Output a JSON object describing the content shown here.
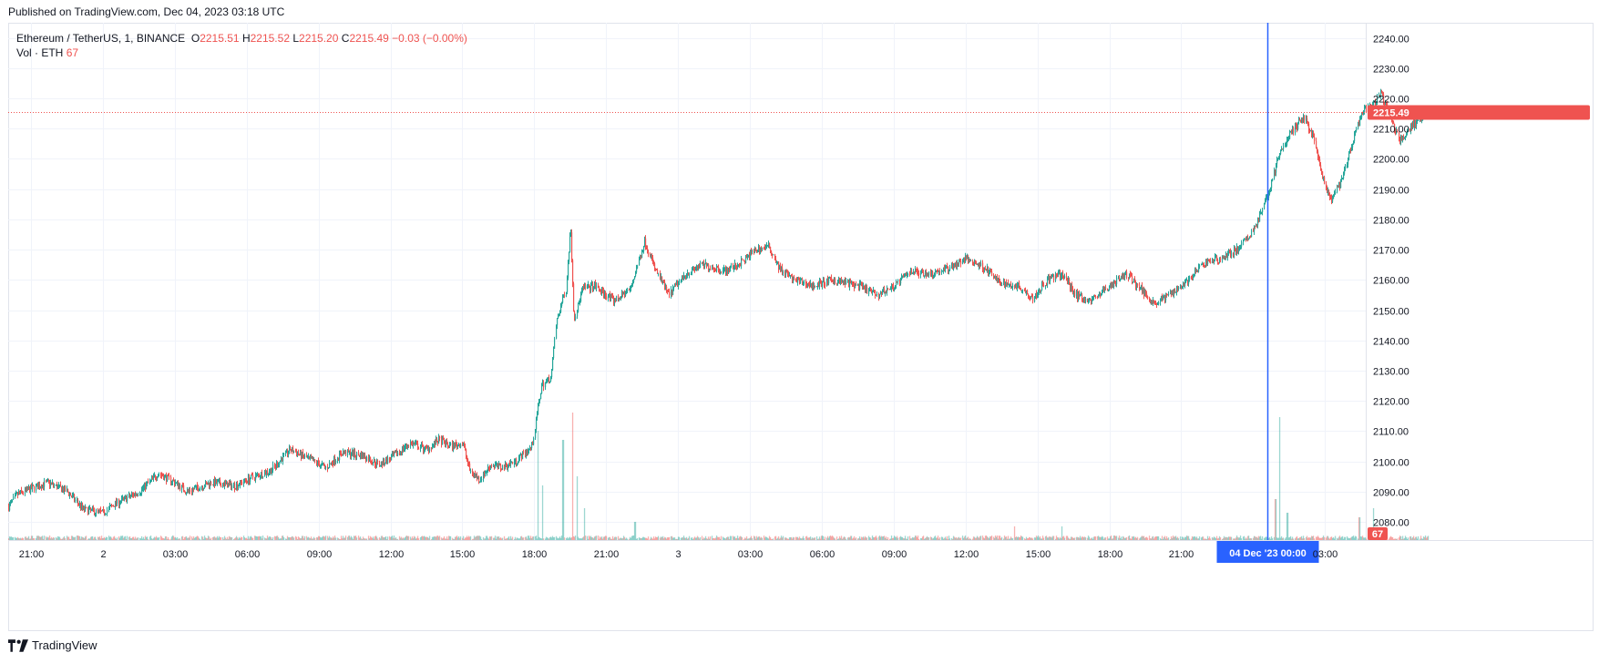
{
  "published": "Published on TradingView.com, Dec 04, 2023 03:18 UTC",
  "legend": {
    "symbol": "Ethereum / TetherUS, 1, BINANCE",
    "o_label": "O",
    "o_value": "2215.51",
    "h_label": "H",
    "h_value": "2215.52",
    "l_label": "L",
    "l_value": "2215.20",
    "c_label": "C",
    "c_value": "2215.49",
    "change": "−0.03 (−0.00%)",
    "vol_label": "Vol · ETH",
    "vol_value": "67"
  },
  "brand": "TradingView",
  "colors": {
    "up": "#26a69a",
    "down": "#ef5350",
    "crosshair": "#2962ff",
    "grid": "#f0f3fa",
    "text": "#131722"
  },
  "chart_data": {
    "type": "candlestick",
    "symbol": "Ethereum / TetherUS, 1, BINANCE",
    "interval": "1",
    "ylim": [
      2074,
      2245
    ],
    "y_ticks": [
      2080,
      2090,
      2100,
      2110,
      2120,
      2130,
      2140,
      2150,
      2160,
      2170,
      2180,
      2190,
      2200,
      2210,
      2220,
      2230,
      2240
    ],
    "y_tick_labels": [
      "2080.00",
      "2090.00",
      "2100.00",
      "2110.00",
      "2120.00",
      "2130.00",
      "2140.00",
      "2150.00",
      "2160.00",
      "2170.00",
      "2180.00",
      "2190.00",
      "2200.00",
      "2210.00",
      "2220.00",
      "2230.00",
      "2240.00"
    ],
    "x_ticks": [
      "21:00",
      "2",
      "03:00",
      "06:00",
      "09:00",
      "12:00",
      "15:00",
      "18:00",
      "21:00",
      "3",
      "03:00",
      "06:00",
      "09:00",
      "12:00",
      "15:00",
      "18:00",
      "21:00",
      "03:00"
    ],
    "x_tick_hours": [
      0,
      3,
      6,
      9,
      12,
      15,
      18,
      21,
      24,
      27,
      30,
      33,
      36,
      39,
      42,
      45,
      48,
      54
    ],
    "x_range_hours": [
      -0.95,
      55.7
    ],
    "last_price": 2215.49,
    "last_price_label": "2215.49",
    "volume_label": "67",
    "crosshair_time_hours": 51.6,
    "crosshair_label": "04 Dec '23   00:00",
    "price_path": [
      [
        -0.95,
        2085
      ],
      [
        -0.6,
        2089
      ],
      [
        0.0,
        2091
      ],
      [
        0.7,
        2093
      ],
      [
        1.5,
        2090
      ],
      [
        2.2,
        2084
      ],
      [
        3.0,
        2083
      ],
      [
        3.5,
        2086
      ],
      [
        4.5,
        2090
      ],
      [
        5.3,
        2096
      ],
      [
        6.0,
        2093
      ],
      [
        6.5,
        2090
      ],
      [
        7.5,
        2093
      ],
      [
        8.5,
        2092
      ],
      [
        9.3,
        2095
      ],
      [
        10.0,
        2097
      ],
      [
        10.8,
        2104
      ],
      [
        11.5,
        2101
      ],
      [
        12.3,
        2098
      ],
      [
        13.0,
        2103
      ],
      [
        13.8,
        2102
      ],
      [
        14.5,
        2099
      ],
      [
        15.0,
        2101
      ],
      [
        15.8,
        2106
      ],
      [
        16.5,
        2104
      ],
      [
        17.0,
        2107
      ],
      [
        17.5,
        2105
      ],
      [
        18.0,
        2106
      ],
      [
        18.3,
        2097
      ],
      [
        18.7,
        2094
      ],
      [
        19.2,
        2099
      ],
      [
        19.6,
        2098
      ],
      [
        20.2,
        2100
      ],
      [
        20.9,
        2105
      ],
      [
        21.1,
        2116
      ],
      [
        21.3,
        2125
      ],
      [
        21.7,
        2128
      ],
      [
        21.9,
        2146
      ],
      [
        22.3,
        2157
      ],
      [
        22.5,
        2178
      ],
      [
        22.65,
        2147
      ],
      [
        23.0,
        2157
      ],
      [
        23.5,
        2158
      ],
      [
        24.3,
        2153
      ],
      [
        25.0,
        2157
      ],
      [
        25.6,
        2173
      ],
      [
        26.0,
        2164
      ],
      [
        26.6,
        2155
      ],
      [
        27.3,
        2162
      ],
      [
        28.0,
        2165
      ],
      [
        29.0,
        2163
      ],
      [
        29.7,
        2166
      ],
      [
        30.2,
        2170
      ],
      [
        30.8,
        2171
      ],
      [
        31.2,
        2164
      ],
      [
        31.8,
        2160
      ],
      [
        32.6,
        2158
      ],
      [
        33.5,
        2160
      ],
      [
        34.5,
        2158
      ],
      [
        35.3,
        2155
      ],
      [
        36.0,
        2158
      ],
      [
        36.7,
        2163
      ],
      [
        37.5,
        2162
      ],
      [
        38.3,
        2164
      ],
      [
        39.0,
        2167
      ],
      [
        39.8,
        2164
      ],
      [
        40.4,
        2159
      ],
      [
        41.2,
        2158
      ],
      [
        41.8,
        2154
      ],
      [
        42.4,
        2160
      ],
      [
        43.0,
        2162
      ],
      [
        43.6,
        2155
      ],
      [
        44.2,
        2153
      ],
      [
        45.0,
        2158
      ],
      [
        45.7,
        2162
      ],
      [
        46.3,
        2157
      ],
      [
        46.9,
        2152
      ],
      [
        47.6,
        2156
      ],
      [
        48.3,
        2160
      ],
      [
        49.0,
        2166
      ],
      [
        49.6,
        2167
      ],
      [
        50.3,
        2170
      ],
      [
        50.8,
        2174
      ],
      [
        51.2,
        2180
      ],
      [
        51.6,
        2188
      ],
      [
        52.0,
        2200
      ],
      [
        52.5,
        2208
      ],
      [
        53.1,
        2214
      ],
      [
        53.5,
        2207
      ],
      [
        53.8,
        2196
      ],
      [
        54.2,
        2186
      ],
      [
        54.7,
        2193
      ],
      [
        55.0,
        2202
      ],
      [
        55.3,
        2210
      ],
      [
        55.6,
        2216
      ],
      [
        56.0,
        2218
      ],
      [
        56.3,
        2222
      ],
      [
        56.7,
        2214
      ],
      [
        57.1,
        2206
      ],
      [
        57.5,
        2210
      ],
      [
        57.9,
        2213
      ],
      [
        58.3,
        2215.49
      ]
    ],
    "volume_spikes": [
      [
        21.15,
        24
      ],
      [
        21.35,
        12
      ],
      [
        22.2,
        22
      ],
      [
        22.6,
        28
      ],
      [
        22.75,
        14
      ],
      [
        23.1,
        7
      ],
      [
        25.2,
        4
      ],
      [
        41.0,
        3
      ],
      [
        43.0,
        3
      ],
      [
        51.9,
        9
      ],
      [
        52.1,
        27
      ],
      [
        52.4,
        6
      ],
      [
        55.4,
        5
      ],
      [
        56.0,
        7
      ]
    ]
  }
}
